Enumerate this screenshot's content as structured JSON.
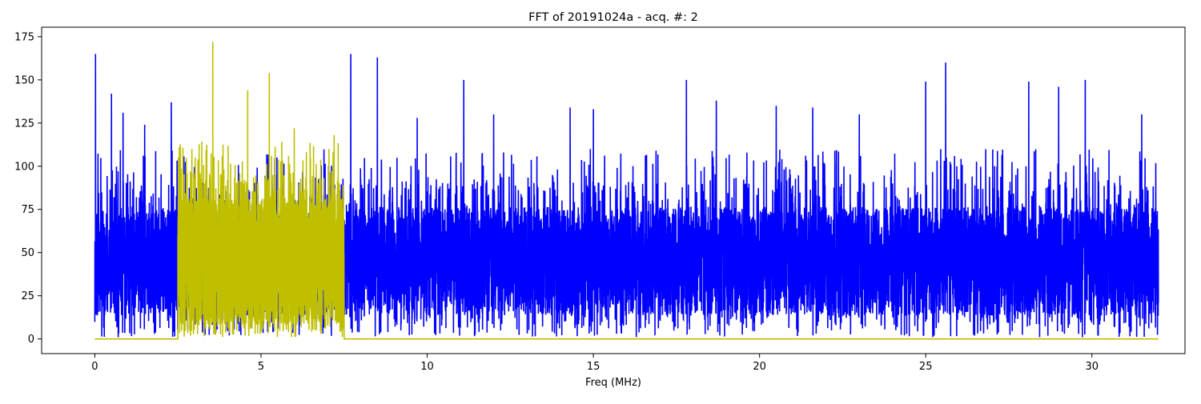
{
  "chart_data": {
    "type": "line",
    "title": "FFT of 20191024a - acq. #: 2",
    "xlabel": "Freq (MHz)",
    "ylabel": "",
    "xlim": [
      -1.6,
      32.8
    ],
    "ylim": [
      -8.5,
      180.5
    ],
    "xticks": [
      0,
      5,
      10,
      15,
      20,
      25,
      30
    ],
    "yticks": [
      0,
      25,
      50,
      75,
      100,
      125,
      150,
      175
    ],
    "grid": false,
    "legend": "none",
    "series": [
      {
        "color": "#0000ff",
        "x_range": [
          0,
          32
        ],
        "baseline": 45,
        "typical_min": 15,
        "typical_max": 85,
        "peaks": [
          {
            "x": 0.02,
            "y": 165
          },
          {
            "x": 0.5,
            "y": 142
          },
          {
            "x": 0.85,
            "y": 131
          },
          {
            "x": 1.5,
            "y": 124
          },
          {
            "x": 2.3,
            "y": 137
          },
          {
            "x": 7.7,
            "y": 165
          },
          {
            "x": 8.5,
            "y": 163
          },
          {
            "x": 9.7,
            "y": 128
          },
          {
            "x": 11.1,
            "y": 150
          },
          {
            "x": 12.0,
            "y": 130
          },
          {
            "x": 14.3,
            "y": 134
          },
          {
            "x": 15.0,
            "y": 133
          },
          {
            "x": 17.8,
            "y": 150
          },
          {
            "x": 18.7,
            "y": 138
          },
          {
            "x": 20.5,
            "y": 135
          },
          {
            "x": 21.6,
            "y": 134
          },
          {
            "x": 23.0,
            "y": 130
          },
          {
            "x": 25.0,
            "y": 149
          },
          {
            "x": 25.6,
            "y": 160
          },
          {
            "x": 28.1,
            "y": 149
          },
          {
            "x": 29.0,
            "y": 146
          },
          {
            "x": 29.8,
            "y": 150
          },
          {
            "x": 31.5,
            "y": 130
          }
        ]
      },
      {
        "color": "#bfbf00",
        "x_range": [
          0,
          32
        ],
        "band": [
          2.5,
          7.5
        ],
        "outside_value": 0,
        "baseline": 45,
        "typical_min": 10,
        "typical_max": 90,
        "peaks": [
          {
            "x": 3.55,
            "y": 172
          },
          {
            "x": 4.6,
            "y": 144
          },
          {
            "x": 5.25,
            "y": 154
          },
          {
            "x": 6.0,
            "y": 122
          },
          {
            "x": 7.2,
            "y": 118
          }
        ]
      }
    ]
  }
}
